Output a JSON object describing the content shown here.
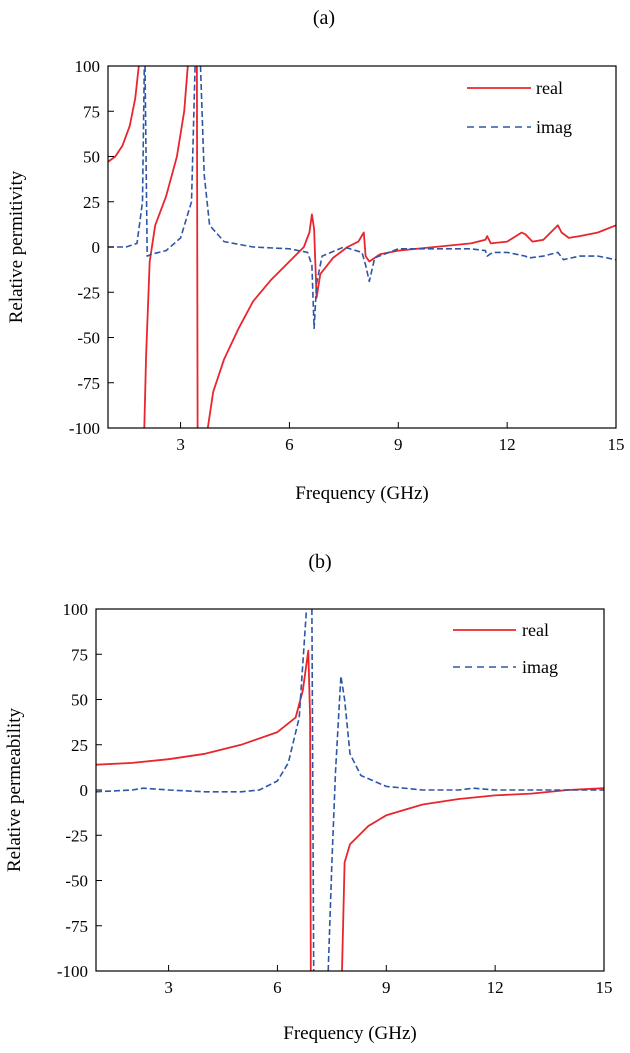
{
  "chart_data": [
    {
      "panel_label": "(a)",
      "type": "line",
      "xlabel": "Frequency (GHz)",
      "ylabel": "Relative permitivity",
      "xlim": [
        1,
        15
      ],
      "ylim": [
        -100,
        100
      ],
      "xticks": [
        3,
        6,
        9,
        12,
        15
      ],
      "yticks": [
        100,
        75,
        50,
        25,
        0,
        -25,
        -50,
        -75,
        -100
      ],
      "legend_position": "top-right",
      "grid": false,
      "colors": {
        "real": "#e8262d",
        "imag": "#2e56a6"
      },
      "series": [
        {
          "name": "real",
          "style": "solid",
          "segments": [
            [
              [
                1.0,
                47
              ],
              [
                1.2,
                50
              ],
              [
                1.4,
                56
              ],
              [
                1.6,
                67
              ],
              [
                1.75,
                82
              ],
              [
                1.85,
                100
              ]
            ],
            [
              [
                2.0,
                -100
              ],
              [
                2.05,
                -60
              ],
              [
                2.15,
                -8
              ],
              [
                2.3,
                12
              ],
              [
                2.6,
                28
              ],
              [
                2.9,
                50
              ],
              [
                3.1,
                75
              ],
              [
                3.2,
                100
              ]
            ],
            [
              [
                3.45,
                100
              ],
              [
                3.47,
                -100
              ]
            ],
            [
              [
                3.75,
                -100
              ],
              [
                3.9,
                -80
              ],
              [
                4.2,
                -62
              ],
              [
                4.6,
                -45
              ],
              [
                5.0,
                -30
              ],
              [
                5.5,
                -18
              ],
              [
                6.0,
                -8
              ],
              [
                6.4,
                0
              ],
              [
                6.55,
                8
              ],
              [
                6.62,
                18
              ],
              [
                6.68,
                10
              ],
              [
                6.75,
                -28
              ],
              [
                6.85,
                -15
              ],
              [
                7.2,
                -6
              ],
              [
                7.6,
                0
              ],
              [
                7.9,
                3
              ],
              [
                8.05,
                8
              ],
              [
                8.1,
                -5
              ],
              [
                8.2,
                -8
              ],
              [
                8.5,
                -4
              ],
              [
                9.0,
                -2
              ],
              [
                10.0,
                0
              ],
              [
                11.0,
                2
              ],
              [
                11.4,
                4
              ],
              [
                11.45,
                6
              ],
              [
                11.55,
                2
              ],
              [
                12.0,
                3
              ],
              [
                12.4,
                8
              ],
              [
                12.5,
                7
              ],
              [
                12.7,
                3
              ],
              [
                13.0,
                4
              ],
              [
                13.4,
                12
              ],
              [
                13.5,
                8
              ],
              [
                13.7,
                5
              ],
              [
                14.0,
                6
              ],
              [
                14.5,
                8
              ],
              [
                15.0,
                12
              ]
            ]
          ]
        },
        {
          "name": "imag",
          "style": "dashed",
          "segments": [
            [
              [
                1.0,
                0
              ],
              [
                1.5,
                0
              ],
              [
                1.8,
                2
              ],
              [
                1.95,
                25
              ],
              [
                2.0,
                100
              ]
            ],
            [
              [
                2.02,
                100
              ],
              [
                2.08,
                -5
              ],
              [
                2.2,
                -4
              ],
              [
                2.6,
                -2
              ],
              [
                3.0,
                5
              ],
              [
                3.3,
                25
              ],
              [
                3.4,
                100
              ]
            ],
            [
              [
                3.55,
                100
              ],
              [
                3.65,
                40
              ],
              [
                3.8,
                12
              ],
              [
                4.2,
                3
              ],
              [
                5.0,
                0
              ],
              [
                6.0,
                -1
              ],
              [
                6.5,
                -3
              ],
              [
                6.62,
                -10
              ],
              [
                6.68,
                -45
              ],
              [
                6.75,
                -20
              ],
              [
                6.9,
                -5
              ],
              [
                7.5,
                0
              ],
              [
                8.0,
                -3
              ],
              [
                8.1,
                -10
              ],
              [
                8.2,
                -19
              ],
              [
                8.35,
                -6
              ],
              [
                9.0,
                -1
              ],
              [
                10.0,
                -1
              ],
              [
                11.0,
                -1
              ],
              [
                11.4,
                -2
              ],
              [
                11.45,
                -5
              ],
              [
                11.6,
                -3
              ],
              [
                12.0,
                -3
              ],
              [
                12.5,
                -5
              ],
              [
                12.6,
                -6
              ],
              [
                13.0,
                -5
              ],
              [
                13.4,
                -3
              ],
              [
                13.55,
                -7
              ],
              [
                14.0,
                -5
              ],
              [
                14.5,
                -5
              ],
              [
                15.0,
                -7
              ]
            ]
          ]
        }
      ]
    },
    {
      "panel_label": "(b)",
      "type": "line",
      "xlabel": "Frequency (GHz)",
      "ylabel": "Relative permeability",
      "xlim": [
        1,
        15
      ],
      "ylim": [
        -100,
        100
      ],
      "xticks": [
        3,
        6,
        9,
        12,
        15
      ],
      "yticks": [
        100,
        75,
        50,
        25,
        0,
        -25,
        -50,
        -75,
        -100
      ],
      "legend_position": "top-right",
      "grid": false,
      "colors": {
        "real": "#e8262d",
        "imag": "#2e56a6"
      },
      "series": [
        {
          "name": "real",
          "style": "solid",
          "segments": [
            [
              [
                1.0,
                14
              ],
              [
                2.0,
                15
              ],
              [
                3.0,
                17
              ],
              [
                4.0,
                20
              ],
              [
                5.0,
                25
              ],
              [
                6.0,
                32
              ],
              [
                6.5,
                40
              ],
              [
                6.7,
                55
              ],
              [
                6.85,
                77
              ],
              [
                6.9,
                40
              ],
              [
                6.92,
                -100
              ]
            ],
            [
              [
                7.78,
                -100
              ],
              [
                7.85,
                -40
              ],
              [
                8.0,
                -30
              ],
              [
                8.5,
                -20
              ],
              [
                9.0,
                -14
              ],
              [
                10.0,
                -8
              ],
              [
                11.0,
                -5
              ],
              [
                12.0,
                -3
              ],
              [
                13.0,
                -2
              ],
              [
                14.0,
                0
              ],
              [
                15.0,
                1
              ]
            ]
          ]
        },
        {
          "name": "imag",
          "style": "dashed",
          "segments": [
            [
              [
                1.0,
                -1
              ],
              [
                2.0,
                0
              ],
              [
                2.3,
                1
              ],
              [
                3.0,
                0
              ],
              [
                4.0,
                -1
              ],
              [
                5.0,
                -1
              ],
              [
                5.5,
                0
              ],
              [
                6.0,
                5
              ],
              [
                6.3,
                15
              ],
              [
                6.6,
                40
              ],
              [
                6.8,
                100
              ]
            ],
            [
              [
                6.95,
                100
              ],
              [
                7.0,
                -100
              ]
            ],
            [
              [
                7.4,
                -100
              ],
              [
                7.5,
                -40
              ],
              [
                7.6,
                10
              ],
              [
                7.75,
                63
              ],
              [
                7.85,
                50
              ],
              [
                8.0,
                20
              ],
              [
                8.3,
                8
              ],
              [
                9.0,
                2
              ],
              [
                10.0,
                0
              ],
              [
                11.0,
                0
              ],
              [
                11.4,
                1
              ],
              [
                12.0,
                0
              ],
              [
                13.0,
                0
              ],
              [
                14.0,
                0
              ],
              [
                15.0,
                0
              ]
            ]
          ]
        }
      ]
    }
  ]
}
